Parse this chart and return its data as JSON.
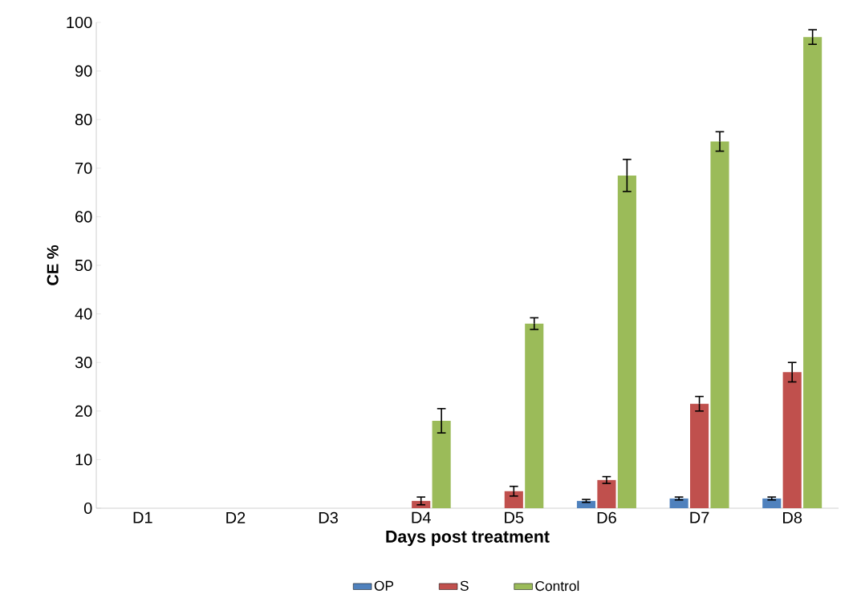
{
  "chart_data": {
    "type": "bar",
    "xlabel": "Days post treatment",
    "ylabel": "CE %",
    "categories": [
      "D1",
      "D2",
      "D3",
      "D4",
      "D5",
      "D6",
      "D7",
      "D8"
    ],
    "series": [
      {
        "name": "OP",
        "color": "#4f81bd",
        "values": [
          0,
          0,
          0,
          0,
          0,
          1.5,
          2,
          2
        ],
        "errors": [
          null,
          null,
          null,
          null,
          null,
          0.3,
          0.3,
          0.3
        ]
      },
      {
        "name": "S",
        "color": "#c0504d",
        "values": [
          0,
          0,
          0,
          1.5,
          3.5,
          5.8,
          21.5,
          28
        ],
        "errors": [
          null,
          null,
          null,
          0.8,
          1,
          0.7,
          1.5,
          2
        ]
      },
      {
        "name": "Control",
        "color": "#9bbb59",
        "values": [
          0,
          0,
          0,
          18,
          38,
          68.5,
          75.5,
          97
        ],
        "errors": [
          null,
          null,
          null,
          2.5,
          1.2,
          3.3,
          2,
          1.5
        ]
      }
    ],
    "ylim": [
      0,
      100
    ],
    "yticks": [
      0,
      10,
      20,
      30,
      40,
      50,
      60,
      70,
      80,
      90,
      100
    ],
    "grid": false,
    "legend": "bottom"
  }
}
